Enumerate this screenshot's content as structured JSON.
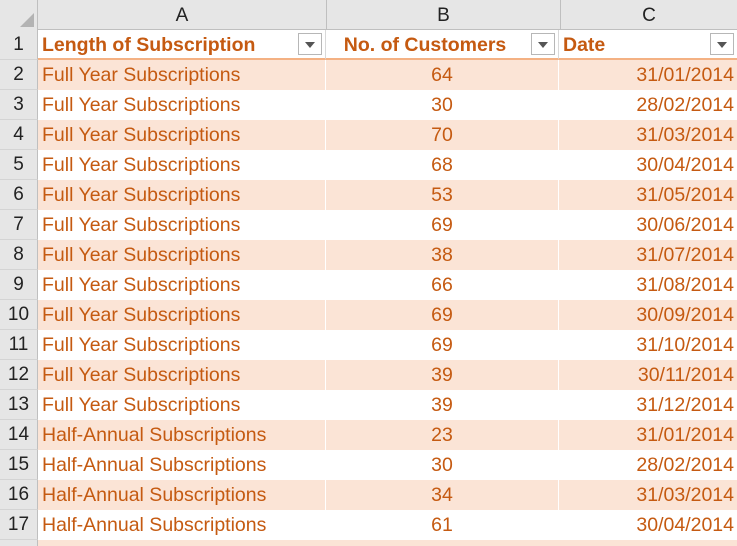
{
  "columns": [
    "A",
    "B",
    "C"
  ],
  "header": {
    "row_number": "1",
    "cells": [
      "Length of Subscription",
      "No. of Customers",
      "Date"
    ]
  },
  "rows": [
    {
      "n": "2",
      "a": "Full Year Subscriptions",
      "b": "64",
      "c": "31/01/2014"
    },
    {
      "n": "3",
      "a": "Full Year Subscriptions",
      "b": "30",
      "c": "28/02/2014"
    },
    {
      "n": "4",
      "a": "Full Year Subscriptions",
      "b": "70",
      "c": "31/03/2014"
    },
    {
      "n": "5",
      "a": "Full Year Subscriptions",
      "b": "68",
      "c": "30/04/2014"
    },
    {
      "n": "6",
      "a": "Full Year Subscriptions",
      "b": "53",
      "c": "31/05/2014"
    },
    {
      "n": "7",
      "a": "Full Year Subscriptions",
      "b": "69",
      "c": "30/06/2014"
    },
    {
      "n": "8",
      "a": "Full Year Subscriptions",
      "b": "38",
      "c": "31/07/2014"
    },
    {
      "n": "9",
      "a": "Full Year Subscriptions",
      "b": "66",
      "c": "31/08/2014"
    },
    {
      "n": "10",
      "a": "Full Year Subscriptions",
      "b": "69",
      "c": "30/09/2014"
    },
    {
      "n": "11",
      "a": "Full Year Subscriptions",
      "b": "69",
      "c": "31/10/2014"
    },
    {
      "n": "12",
      "a": "Full Year Subscriptions",
      "b": "39",
      "c": "30/11/2014"
    },
    {
      "n": "13",
      "a": "Full Year Subscriptions",
      "b": "39",
      "c": "31/12/2014"
    },
    {
      "n": "14",
      "a": "Half-Annual Subscriptions",
      "b": "23",
      "c": "31/01/2014"
    },
    {
      "n": "15",
      "a": "Half-Annual Subscriptions",
      "b": "30",
      "c": "28/02/2014"
    },
    {
      "n": "16",
      "a": "Half-Annual Subscriptions",
      "b": "34",
      "c": "31/03/2014"
    },
    {
      "n": "17",
      "a": "Half-Annual Subscriptions",
      "b": "61",
      "c": "30/04/2014"
    }
  ],
  "colors": {
    "text": "#c55a11",
    "band": "#fbe4d6",
    "header_border": "#f4b183",
    "gridhead": "#e6e6e6"
  },
  "icons": {
    "filter": "chevron-down-icon",
    "select_all": "select-all-triangle-icon"
  }
}
